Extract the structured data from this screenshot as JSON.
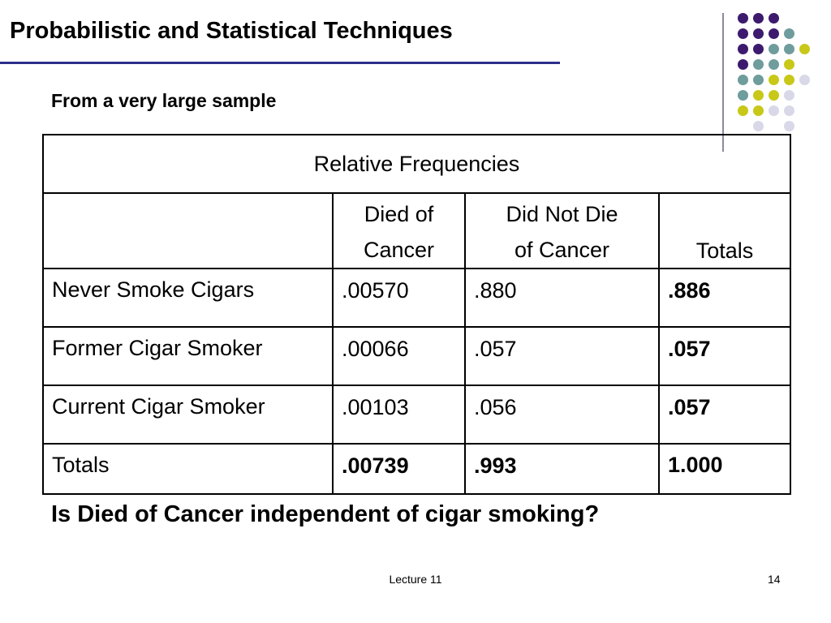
{
  "slide": {
    "title": "Probabilistic and Statistical Techniques",
    "subtitle": "From a very large sample",
    "question": "Is Died of Cancer independent of cigar smoking?",
    "footer_center": "Lecture 11",
    "page_number": "14",
    "colors": {
      "title_rule": "#2e2e8c",
      "purple": "#3d1a6e",
      "teal": "#6f9c9c",
      "olive": "#c8c818",
      "lavender": "#d8d8e8"
    }
  },
  "table": {
    "caption": "Relative Frequencies",
    "columns": [
      {
        "line1": "Died of",
        "line2": "Cancer"
      },
      {
        "line1": "Did Not Die",
        "line2": "of Cancer"
      },
      {
        "line1": "",
        "line2": "Totals"
      }
    ],
    "rows": [
      {
        "label": "Never Smoke Cigars",
        "died": ".00570",
        "not_died": ".880",
        "total": ".886"
      },
      {
        "label": "Former Cigar Smoker",
        "died": ".00066",
        "not_died": ".057",
        "total": ".057"
      },
      {
        "label": "Current Cigar Smoker",
        "died": ".00103",
        "not_died": ".056",
        "total": ".057"
      },
      {
        "label": "Totals",
        "died": ".00739",
        "not_died": ".993",
        "total": "1.000"
      }
    ]
  }
}
